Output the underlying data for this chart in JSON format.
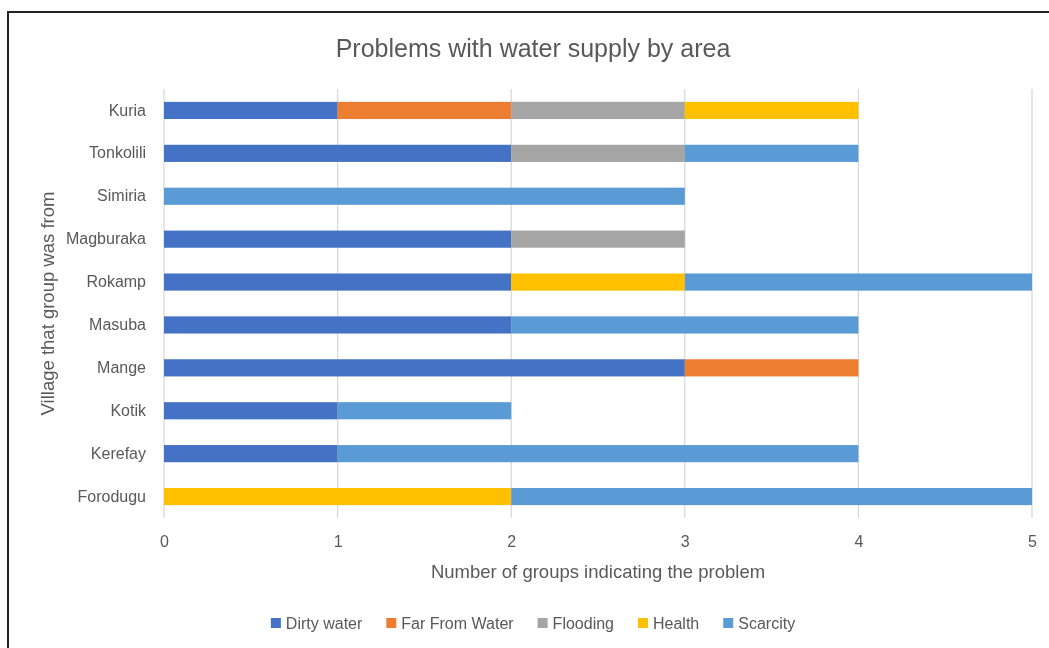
{
  "chart_data": {
    "type": "bar",
    "title": "Problems with water supply by area",
    "xlabel": "Number of groups indicating the problem",
    "ylabel": "Village that group was from",
    "orientation": "horizontal",
    "stacked": true,
    "categories": [
      "Kuria",
      "Tonkolili",
      "Simiria",
      "Magburaka",
      "Rokamp",
      "Masuba",
      "Mange",
      "Kotik",
      "Kerefay",
      "Forodugu"
    ],
    "series": [
      {
        "name": "Dirty water",
        "color": "#4472c4",
        "values": [
          1,
          2,
          null,
          2,
          2,
          2,
          3,
          1,
          1,
          null
        ]
      },
      {
        "name": "Far From Water",
        "color": "#ed7d31",
        "values": [
          1,
          null,
          null,
          null,
          null,
          null,
          1,
          null,
          null,
          null
        ]
      },
      {
        "name": "Flooding",
        "color": "#a5a5a5",
        "values": [
          1,
          1,
          null,
          1,
          null,
          null,
          null,
          null,
          null,
          null
        ]
      },
      {
        "name": "Health",
        "color": "#ffc000",
        "values": [
          1,
          null,
          null,
          null,
          1,
          null,
          null,
          null,
          null,
          2
        ]
      },
      {
        "name": "Scarcity",
        "color": "#5b9bd5",
        "values": [
          null,
          1,
          3,
          null,
          2,
          2,
          null,
          1,
          3,
          3
        ]
      }
    ],
    "xlim": [
      0,
      5
    ],
    "xticks": [
      0,
      1,
      2,
      3,
      4,
      5
    ],
    "grid": "x",
    "legend": "bottom"
  }
}
